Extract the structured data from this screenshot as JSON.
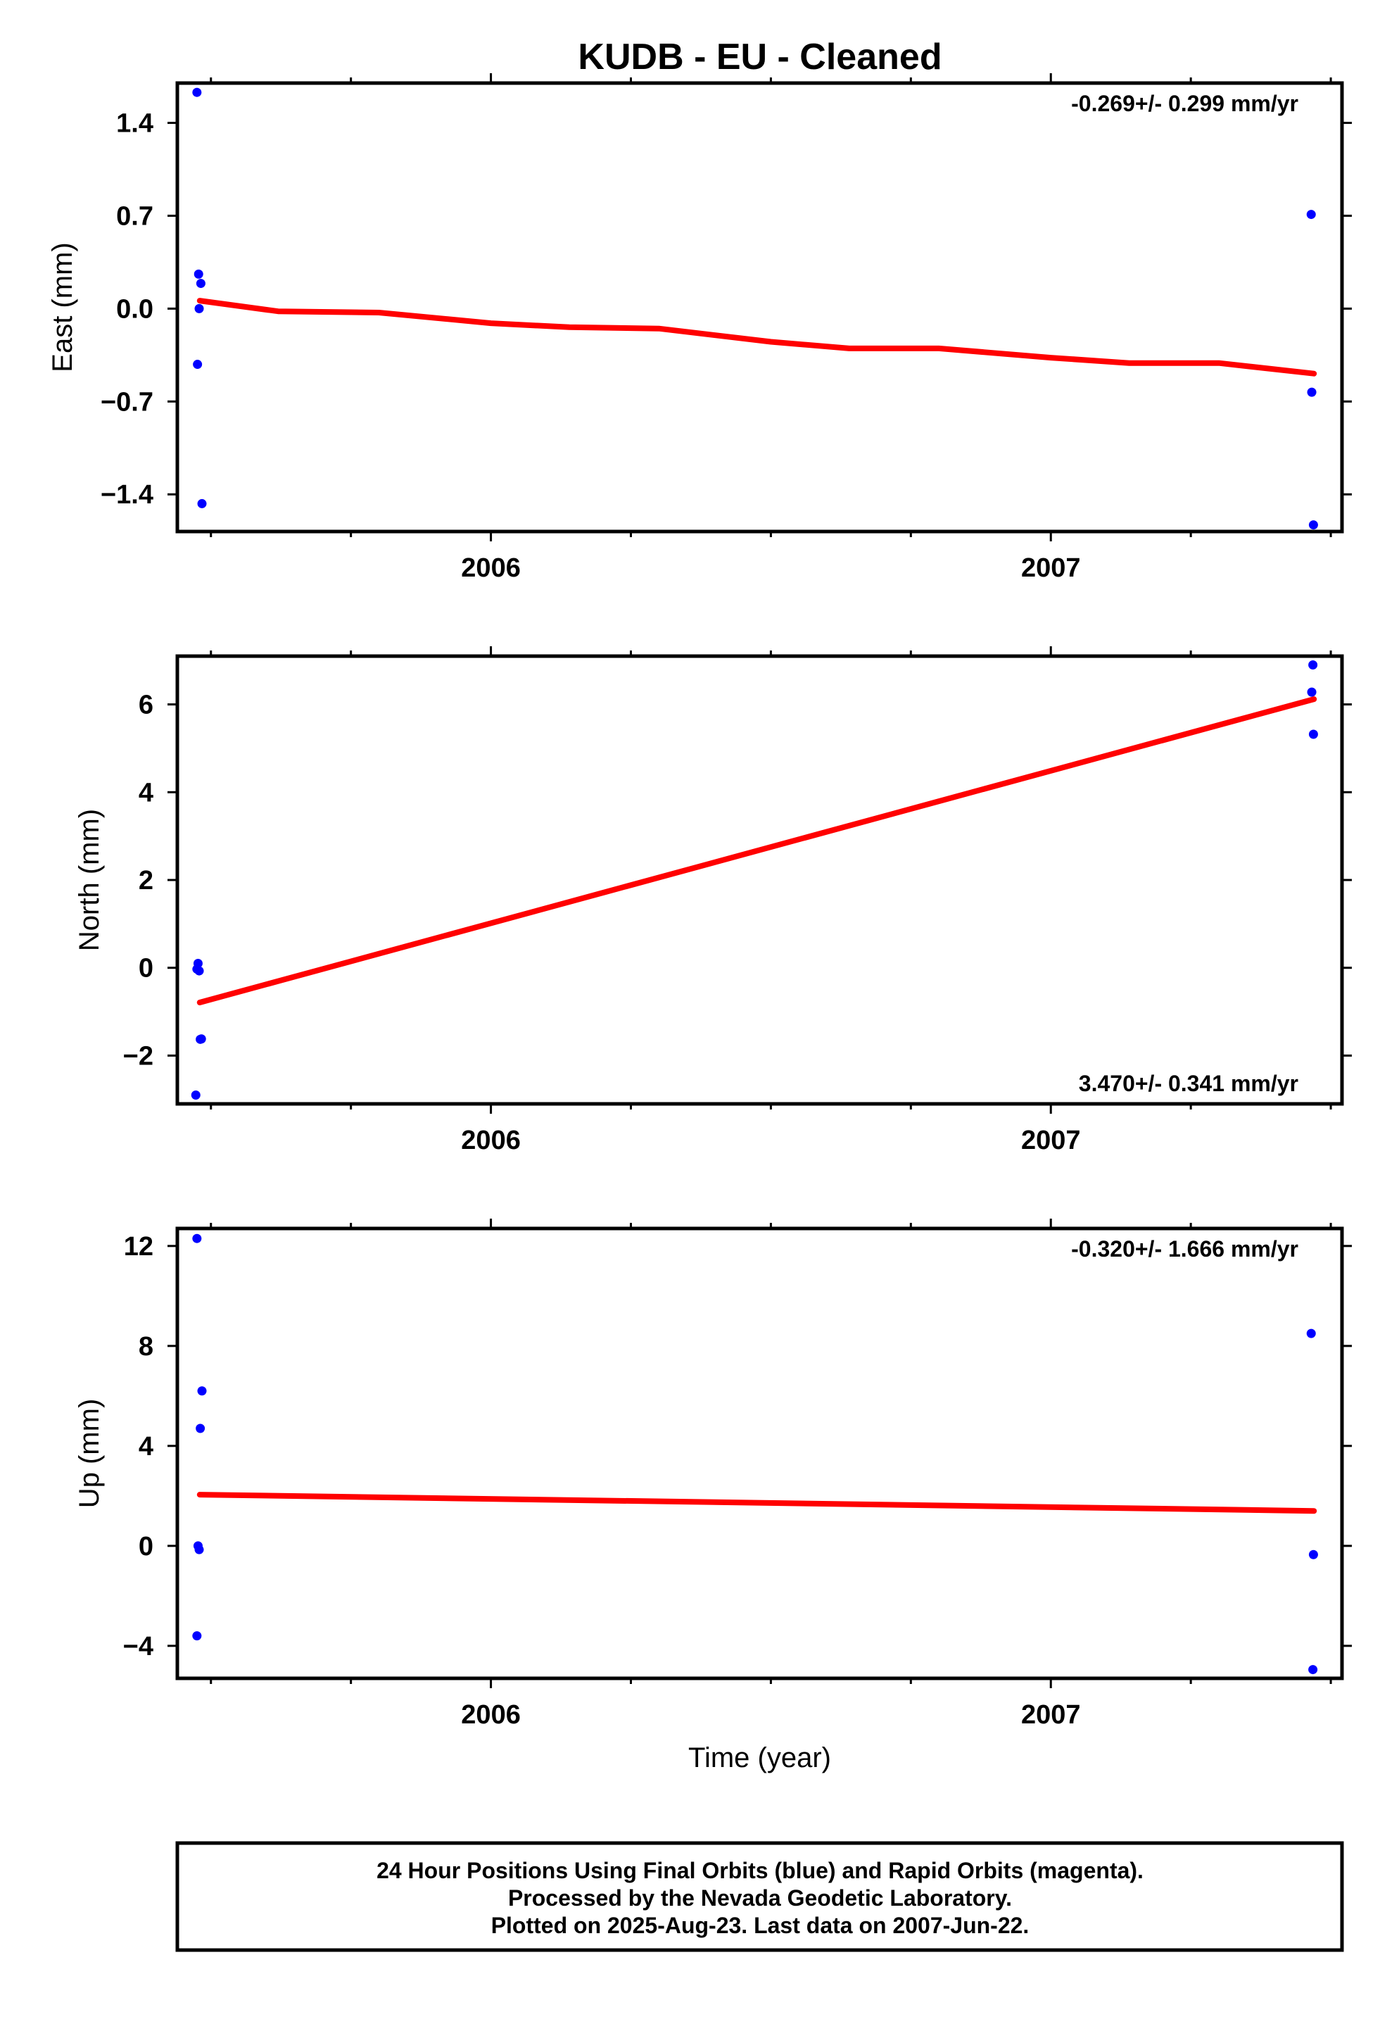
{
  "title": "KUDB  - EU - Cleaned",
  "caption": {
    "lines": [
      "24 Hour Positions Using Final Orbits (blue) and Rapid Orbits (magenta).",
      "Processed by the Nevada Geodetic Laboratory.",
      "Plotted on 2025-Aug-23. Last data on 2007-Jun-22."
    ]
  },
  "colors": {
    "points": "#0000ff",
    "fit": "#ff0000",
    "axes": "#000000"
  },
  "chart_data": [
    {
      "type": "scatter",
      "panel": "east",
      "ylabel": "East (mm)",
      "xlabel": "",
      "rate_text": "-0.269+/- 0.299 mm/yr",
      "rate_position": "top-right",
      "xlim": [
        2005.44,
        2007.52
      ],
      "ylim": [
        -1.68,
        1.7
      ],
      "x_ticks": [
        2006,
        2007
      ],
      "x_tick_labels": [
        "2006",
        "2007"
      ],
      "y_ticks": [
        1.4,
        0.7,
        0.0,
        -0.7,
        -1.4
      ],
      "y_tick_labels": [
        "1.4",
        "0.7",
        "0.0",
        "−0.7",
        "−1.4"
      ],
      "grid": false,
      "points": [
        {
          "x": 2005.475,
          "y": 1.63
        },
        {
          "x": 2005.478,
          "y": 0.26
        },
        {
          "x": 2005.482,
          "y": 0.19
        },
        {
          "x": 2005.479,
          "y": 0.0
        },
        {
          "x": 2005.476,
          "y": -0.42
        },
        {
          "x": 2005.484,
          "y": -1.47
        },
        {
          "x": 2007.465,
          "y": 0.71
        },
        {
          "x": 2007.466,
          "y": -0.63
        },
        {
          "x": 2007.469,
          "y": -1.63
        }
      ],
      "fit": [
        {
          "x": 2005.48,
          "y": 0.06
        },
        {
          "x": 2005.62,
          "y": -0.02
        },
        {
          "x": 2005.8,
          "y": -0.03
        },
        {
          "x": 2006.0,
          "y": -0.11
        },
        {
          "x": 2006.14,
          "y": -0.14
        },
        {
          "x": 2006.3,
          "y": -0.15
        },
        {
          "x": 2006.5,
          "y": -0.25
        },
        {
          "x": 2006.64,
          "y": -0.3
        },
        {
          "x": 2006.8,
          "y": -0.3
        },
        {
          "x": 2007.0,
          "y": -0.37
        },
        {
          "x": 2007.14,
          "y": -0.41
        },
        {
          "x": 2007.3,
          "y": -0.41
        },
        {
          "x": 2007.47,
          "y": -0.49
        }
      ]
    },
    {
      "type": "scatter",
      "panel": "north",
      "ylabel": "North (mm)",
      "xlabel": "",
      "rate_text": "3.470+/- 0.341 mm/yr",
      "rate_position": "bottom-right",
      "xlim": [
        2005.44,
        2007.52
      ],
      "ylim": [
        -3.1,
        7.1
      ],
      "x_ticks": [
        2006,
        2007
      ],
      "x_tick_labels": [
        "2006",
        "2007"
      ],
      "y_ticks": [
        6,
        4,
        2,
        0,
        -2
      ],
      "y_tick_labels": [
        "6",
        "4",
        "2",
        "0",
        "−2"
      ],
      "grid": false,
      "points": [
        {
          "x": 2005.477,
          "y": 0.1
        },
        {
          "x": 2005.475,
          "y": -0.03
        },
        {
          "x": 2005.479,
          "y": -0.07
        },
        {
          "x": 2005.483,
          "y": -1.62
        },
        {
          "x": 2005.481,
          "y": -1.63
        },
        {
          "x": 2005.473,
          "y": -2.9
        },
        {
          "x": 2007.468,
          "y": 6.9
        },
        {
          "x": 2007.466,
          "y": 6.28
        },
        {
          "x": 2007.469,
          "y": 5.32
        }
      ],
      "fit": [
        {
          "x": 2005.48,
          "y": -0.79
        },
        {
          "x": 2007.47,
          "y": 6.12
        }
      ]
    },
    {
      "type": "scatter",
      "panel": "up",
      "ylabel": "Up (mm)",
      "xlabel": "Time (year)",
      "rate_text": "-0.320+/- 1.666 mm/yr",
      "rate_position": "top-right",
      "xlim": [
        2005.44,
        2007.52
      ],
      "ylim": [
        -5.3,
        12.7
      ],
      "x_ticks": [
        2006,
        2007
      ],
      "x_tick_labels": [
        "2006",
        "2007"
      ],
      "y_ticks": [
        12,
        8,
        4,
        0,
        -4
      ],
      "y_tick_labels": [
        "12",
        "8",
        "4",
        "0",
        "−4"
      ],
      "grid": false,
      "points": [
        {
          "x": 2005.475,
          "y": 12.3
        },
        {
          "x": 2005.484,
          "y": 6.2
        },
        {
          "x": 2005.481,
          "y": 4.7
        },
        {
          "x": 2005.477,
          "y": 0.0
        },
        {
          "x": 2005.479,
          "y": -0.15
        },
        {
          "x": 2005.475,
          "y": -3.6
        },
        {
          "x": 2007.465,
          "y": 8.5
        },
        {
          "x": 2007.469,
          "y": -0.35
        },
        {
          "x": 2007.468,
          "y": -4.95
        }
      ],
      "fit": [
        {
          "x": 2005.48,
          "y": 2.05
        },
        {
          "x": 2007.47,
          "y": 1.4
        }
      ]
    }
  ]
}
